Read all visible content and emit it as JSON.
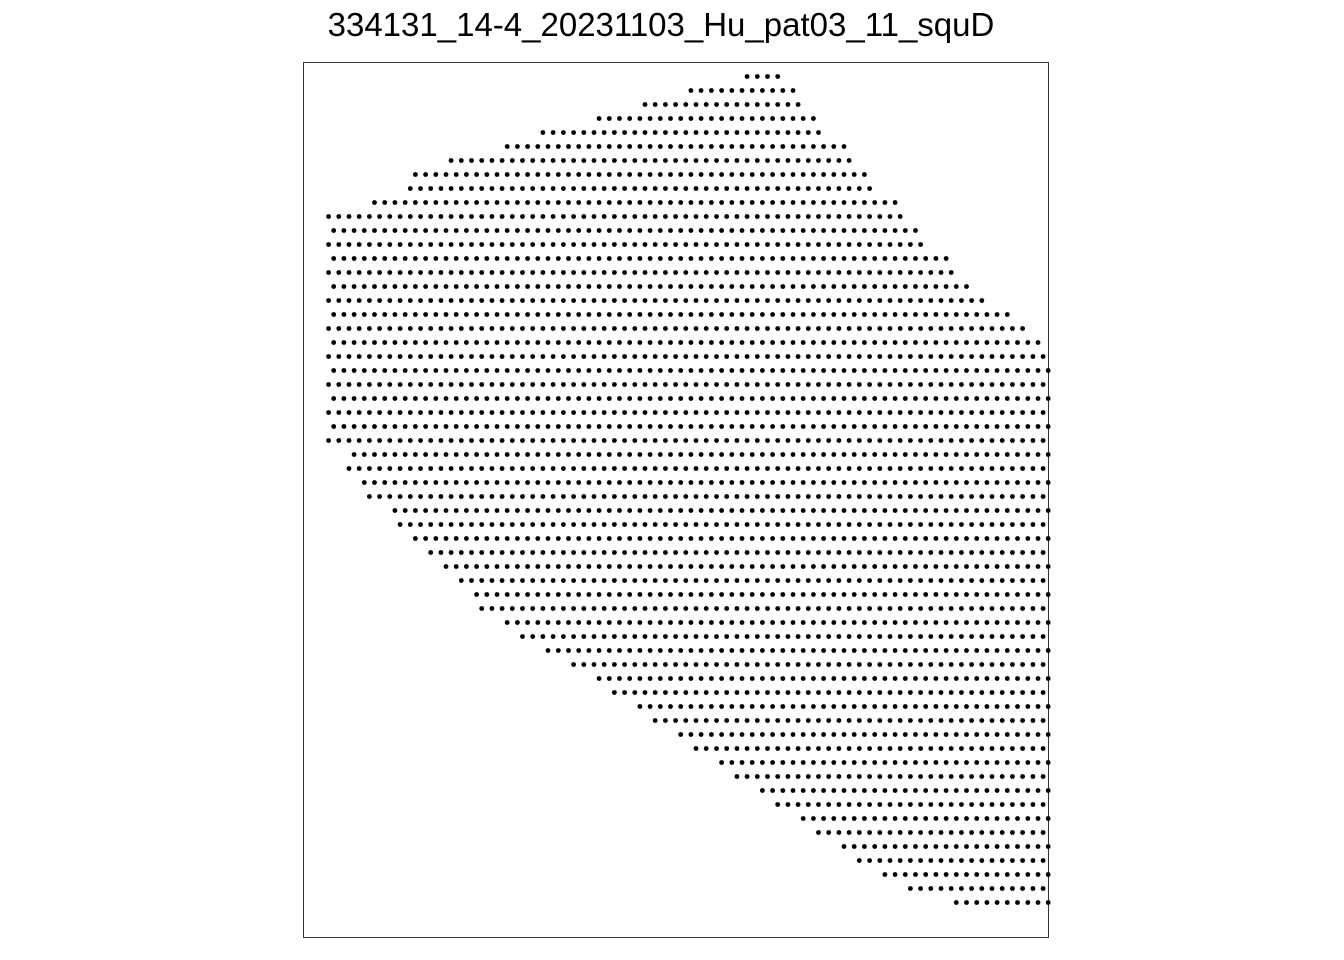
{
  "chart_data": {
    "type": "scatter",
    "title": "334131_14-4_20231103_Hu_pat03_11_squD",
    "xlabel": "",
    "ylabel": "",
    "grid": false,
    "legend": "none",
    "colors": {
      "point": "#000000",
      "frame": "#333333",
      "background": "#ffffff"
    },
    "xlim": [
      0,
      1000
    ],
    "ylim": [
      0,
      1000
    ],
    "lattice": {
      "row_spacing": 16,
      "col_spacing": 27.4
    },
    "rows": [
      [
        1,
        42,
        45
      ],
      [
        2,
        36,
        46
      ],
      [
        3,
        32,
        47
      ],
      [
        4,
        27,
        48
      ],
      [
        5,
        22,
        49
      ],
      [
        6,
        18,
        51
      ],
      [
        7,
        13,
        52
      ],
      [
        8,
        9,
        53
      ],
      [
        9,
        9,
        54
      ],
      [
        10,
        5,
        56
      ],
      [
        11,
        1,
        57
      ],
      [
        12,
        1,
        58
      ],
      [
        13,
        1,
        59
      ],
      [
        14,
        1,
        61
      ],
      [
        15,
        1,
        62
      ],
      [
        16,
        1,
        63
      ],
      [
        17,
        1,
        65
      ],
      [
        18,
        1,
        67
      ],
      [
        19,
        1,
        69
      ],
      [
        20,
        1,
        70
      ],
      [
        21,
        1,
        71
      ],
      [
        22,
        1,
        72
      ],
      [
        23,
        1,
        73
      ],
      [
        24,
        1,
        74
      ],
      [
        25,
        1,
        75
      ],
      [
        26,
        1,
        76
      ],
      [
        27,
        1,
        78
      ],
      [
        28,
        3,
        80
      ],
      [
        29,
        3,
        82
      ],
      [
        30,
        4,
        84
      ],
      [
        31,
        5,
        86
      ],
      [
        32,
        7,
        88
      ],
      [
        33,
        8,
        89
      ],
      [
        34,
        9,
        90
      ],
      [
        35,
        11,
        91
      ],
      [
        36,
        12,
        92
      ],
      [
        37,
        14,
        93
      ],
      [
        38,
        15,
        94
      ],
      [
        39,
        16,
        95
      ],
      [
        40,
        18,
        95
      ],
      [
        41,
        20,
        95
      ],
      [
        42,
        22,
        95
      ],
      [
        43,
        25,
        95
      ],
      [
        44,
        27,
        95
      ],
      [
        45,
        29,
        95
      ],
      [
        46,
        31,
        95
      ],
      [
        47,
        33,
        95
      ],
      [
        48,
        35,
        95
      ],
      [
        49,
        37,
        95
      ],
      [
        50,
        39,
        95
      ],
      [
        51,
        41,
        95
      ],
      [
        52,
        43,
        95
      ],
      [
        53,
        45,
        94
      ],
      [
        54,
        47,
        92
      ],
      [
        55,
        49,
        90
      ],
      [
        56,
        51,
        88
      ],
      [
        57,
        53,
        84
      ],
      [
        58,
        55,
        80
      ],
      [
        59,
        58,
        76
      ],
      [
        60,
        62,
        72
      ]
    ]
  }
}
